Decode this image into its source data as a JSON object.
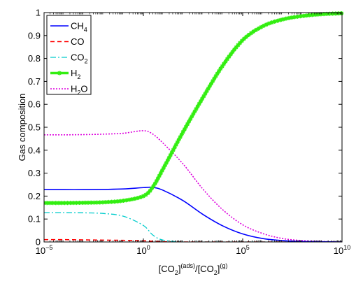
{
  "chart_data": {
    "type": "line",
    "xscale": "log",
    "xlim": [
      1e-05,
      10000000000.0
    ],
    "ylim": [
      0,
      1
    ],
    "ylabel": "Gas composition",
    "xlabel_parts": [
      "[CO",
      "2",
      "]",
      "(ads)",
      "/[CO",
      "2",
      "]",
      "(g)"
    ],
    "xticks": [
      {
        "value": 1e-05,
        "base": "10",
        "exp": "−5"
      },
      {
        "value": 1,
        "base": "10",
        "exp": "0"
      },
      {
        "value": 100000.0,
        "base": "10",
        "exp": "5"
      },
      {
        "value": 10000000000.0,
        "base": "10",
        "exp": "10"
      }
    ],
    "yticks": [
      "0",
      "0.1",
      "0.2",
      "0.3",
      "0.4",
      "0.5",
      "0.6",
      "0.7",
      "0.8",
      "0.9",
      "1"
    ],
    "grid": false,
    "legend_position": "top-left",
    "x": [
      1e-05,
      0.0001,
      0.001,
      0.01,
      0.1,
      1,
      3,
      10,
      100,
      1000,
      10000.0,
      100000.0,
      1000000.0,
      10000000.0,
      100000000.0,
      1000000000.0,
      10000000000.0
    ],
    "series": [
      {
        "name": "CH4",
        "label_parts": [
          "CH",
          "4"
        ],
        "color": "#0000ff",
        "dash": "",
        "width": 1.6,
        "marker": "none",
        "values": [
          0.228,
          0.228,
          0.228,
          0.229,
          0.231,
          0.237,
          0.238,
          0.225,
          0.18,
          0.12,
          0.07,
          0.035,
          0.015,
          0.006,
          0.002,
          0.001,
          0.0
        ]
      },
      {
        "name": "CO",
        "label_parts": [
          "CO"
        ],
        "color": "#ff0000",
        "dash": "6,4",
        "width": 1.6,
        "marker": "none",
        "values": [
          0.01,
          0.01,
          0.009,
          0.008,
          0.007,
          0.005,
          0.003,
          0.001,
          0.0,
          0.0,
          0.0,
          0.0,
          0.0,
          0.0,
          0.0,
          0.0,
          0.0
        ]
      },
      {
        "name": "CO2",
        "label_parts": [
          "CO",
          "2"
        ],
        "color": "#00cccc",
        "dash": "8,3,2,3",
        "width": 1.3,
        "marker": "none",
        "values": [
          0.128,
          0.128,
          0.127,
          0.124,
          0.112,
          0.072,
          0.03,
          0.008,
          0.0,
          0.0,
          0.0,
          0.0,
          0.0,
          0.0,
          0.0,
          0.0,
          0.0
        ]
      },
      {
        "name": "H2",
        "label_parts": [
          "H",
          "2"
        ],
        "color": "#33ee11",
        "dash": "",
        "width": 3.5,
        "marker": "star",
        "values": [
          0.17,
          0.17,
          0.171,
          0.173,
          0.18,
          0.2,
          0.24,
          0.32,
          0.48,
          0.63,
          0.77,
          0.88,
          0.94,
          0.97,
          0.985,
          0.993,
          0.997
        ]
      },
      {
        "name": "H2O",
        "label_parts": [
          "H",
          "2",
          "O"
        ],
        "color": "#dd00dd",
        "dash": "2,2",
        "width": 1.6,
        "marker": "none",
        "values": [
          0.467,
          0.467,
          0.468,
          0.47,
          0.474,
          0.485,
          0.47,
          0.43,
          0.34,
          0.23,
          0.14,
          0.075,
          0.037,
          0.015,
          0.006,
          0.002,
          0.0
        ]
      }
    ]
  }
}
